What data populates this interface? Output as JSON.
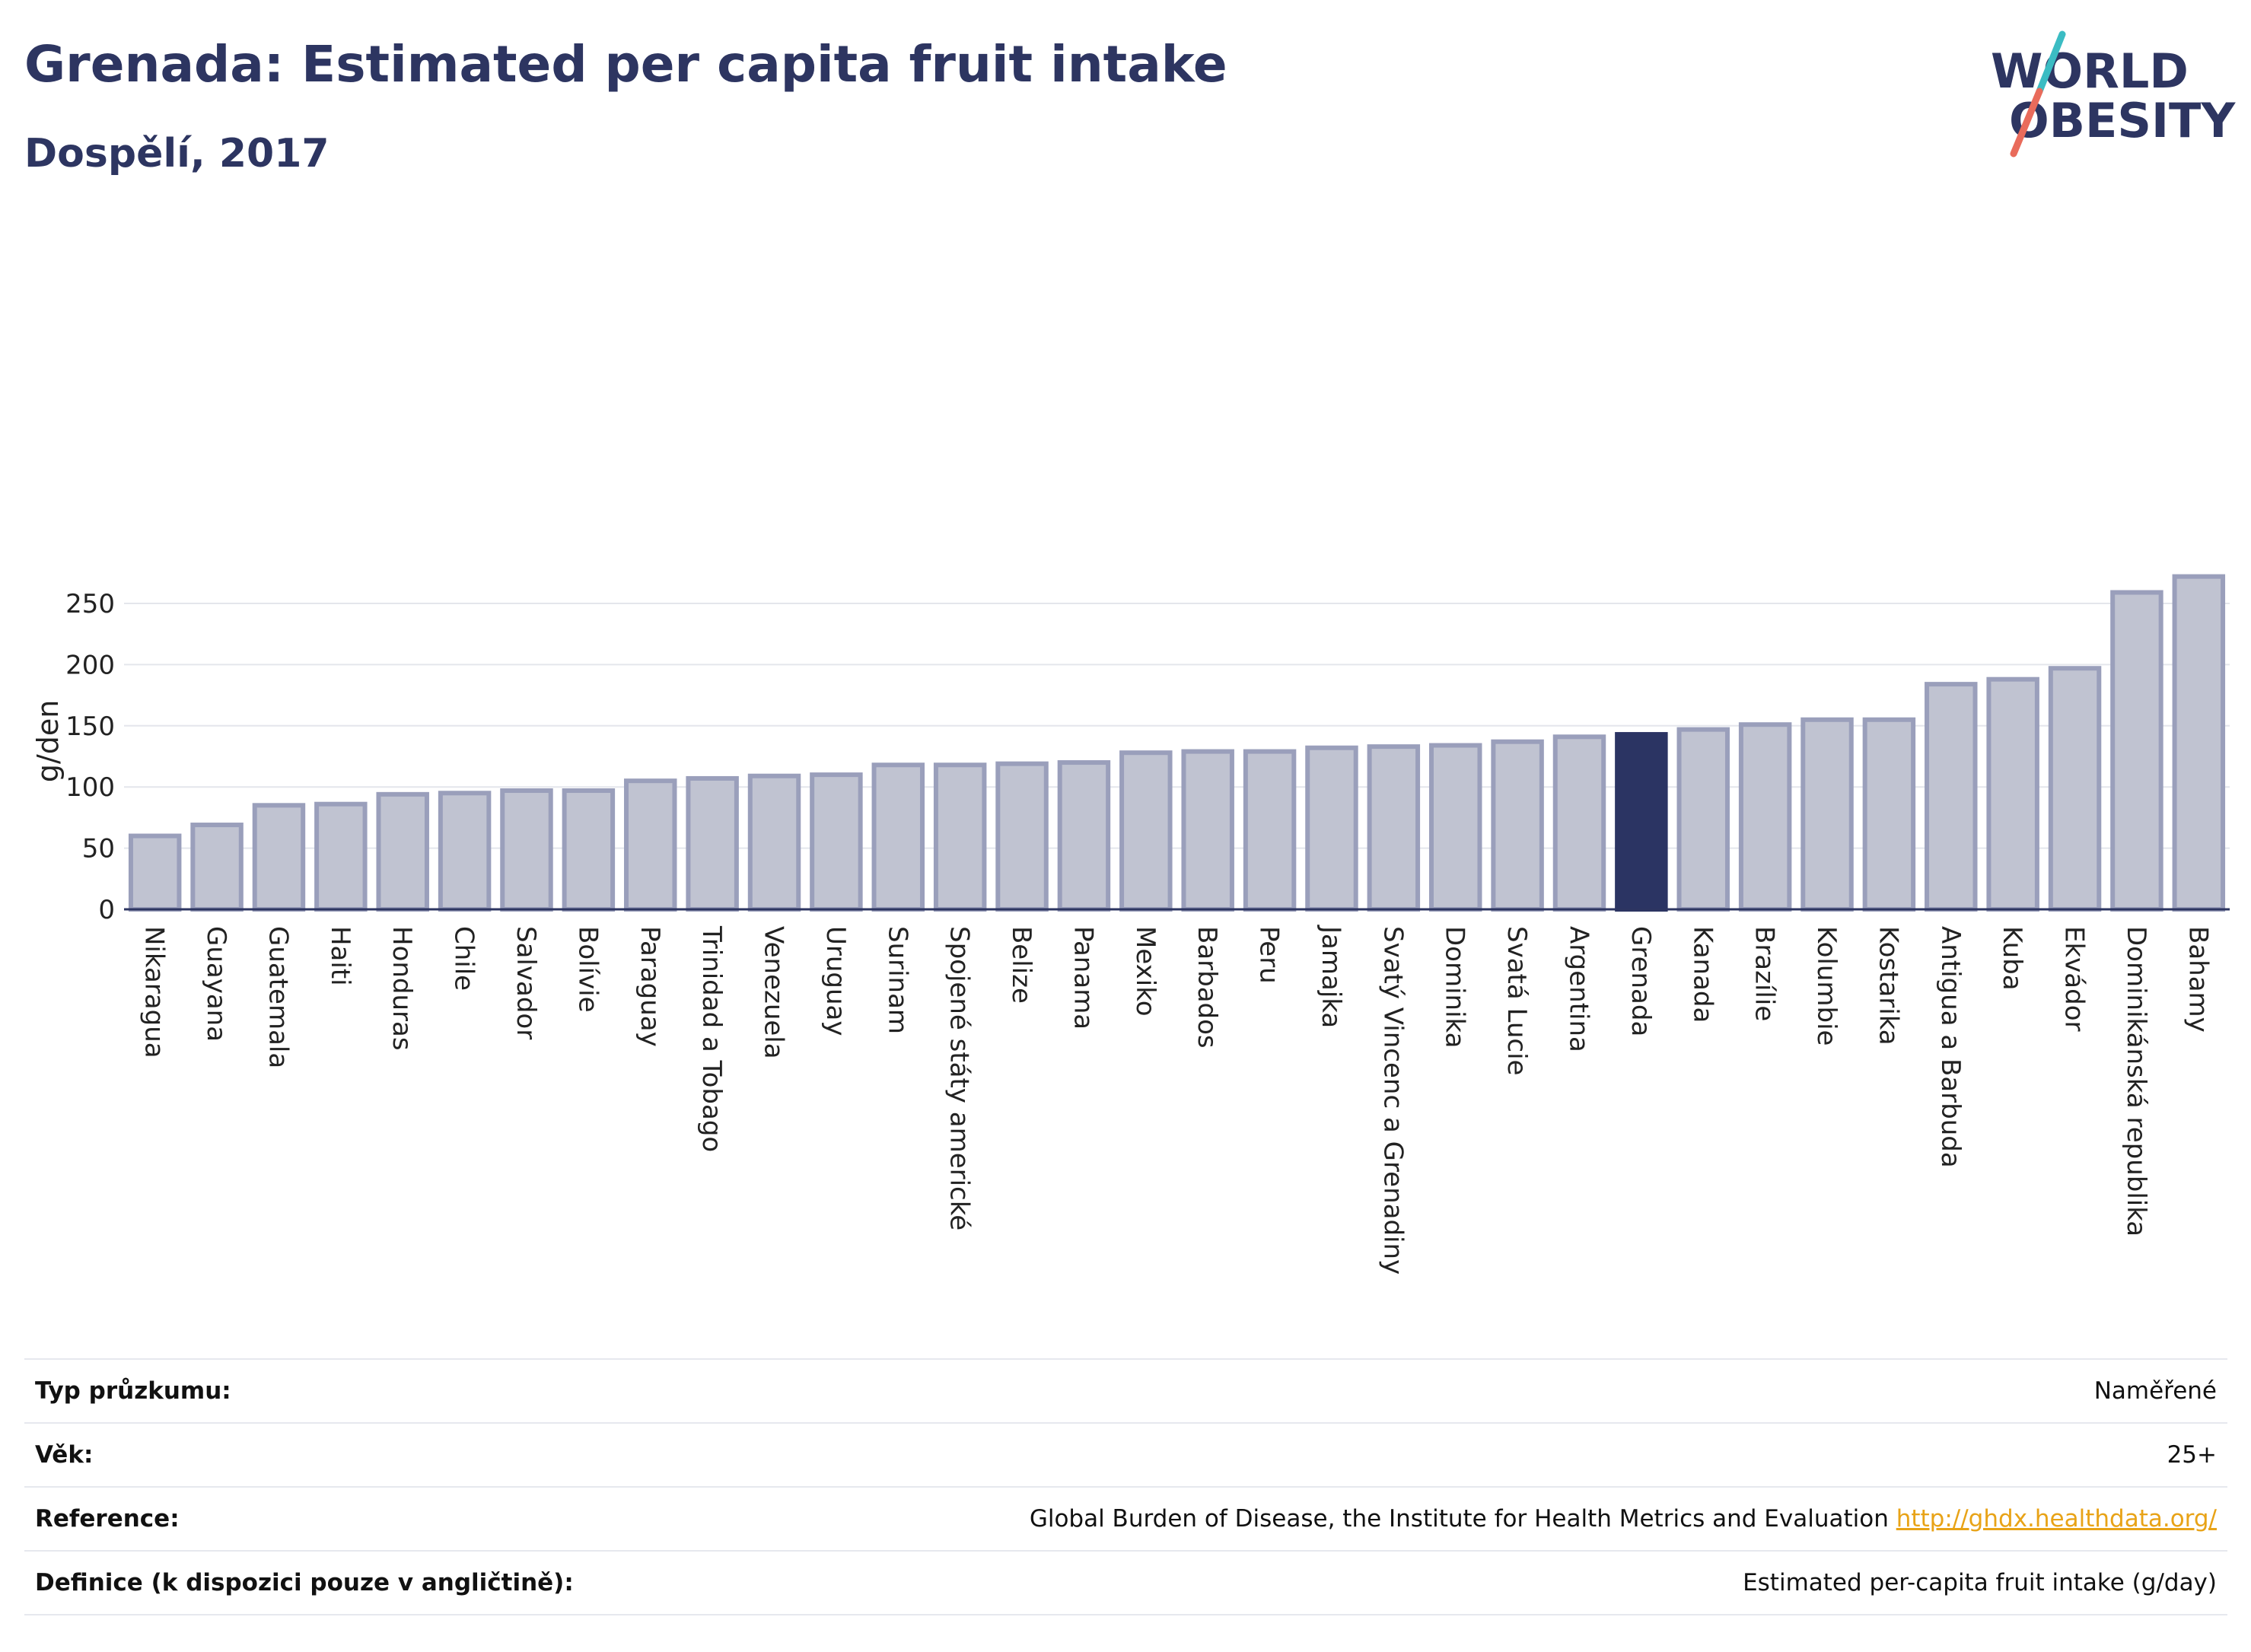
{
  "header": {
    "title": "Grenada: Estimated per capita fruit intake",
    "subtitle": "Dospělí, 2017"
  },
  "logo": {
    "line1": "WORLD",
    "line2": "OBESITY",
    "text_color": "#2d3561",
    "accent_teal": "#3bbcc3",
    "accent_coral": "#e96b5b"
  },
  "chart_data": {
    "type": "bar",
    "title": "Grenada: Estimated per capita fruit intake",
    "subtitle": "Dospělí, 2017",
    "ylabel": "g/den",
    "xlabel": "",
    "ylim": [
      0,
      275
    ],
    "yticks": [
      0,
      50,
      100,
      150,
      200,
      250
    ],
    "grid": true,
    "highlight": "Grenada",
    "colors": {
      "bar": "#c0c3d1",
      "bar_border": "#9a9fbb",
      "highlight": "#2b3463"
    },
    "categories": [
      "Nikaragua",
      "Guayana",
      "Guatemala",
      "Haiti",
      "Honduras",
      "Chile",
      "Salvador",
      "Bolívie",
      "Paraguay",
      "Trinidad a Tobago",
      "Venezuela",
      "Uruguay",
      "Surinam",
      "Spojené státy americké",
      "Belize",
      "Panama",
      "Mexiko",
      "Barbados",
      "Peru",
      "Jamajka",
      "Svatý Vincenc a Grenadiny",
      "Dominika",
      "Svatá Lucie",
      "Argentina",
      "Grenada",
      "Kanada",
      "Brazílie",
      "Kolumbie",
      "Kostarika",
      "Antigua a Barbuda",
      "Kuba",
      "Ekvádor",
      "Dominikánská republika",
      "Bahamy"
    ],
    "values": [
      60,
      69,
      85,
      86,
      94,
      95,
      97,
      97,
      105,
      107,
      109,
      110,
      118,
      118,
      119,
      120,
      128,
      129,
      129,
      132,
      133,
      134,
      137,
      141,
      143,
      147,
      151,
      155,
      155,
      184,
      188,
      197,
      259,
      272
    ]
  },
  "info": [
    {
      "key": "Typ průzkumu:",
      "value": "Naměřené"
    },
    {
      "key": "Věk:",
      "value": "25+"
    },
    {
      "key": "Reference:",
      "value": "Global Burden of Disease, the Institute for Health Metrics and Evaluation",
      "link": "http://ghdx.healthdata.org/"
    },
    {
      "key": "Definice (k dispozici pouze v angličtině):",
      "value": "Estimated per-capita fruit intake (g/day)"
    }
  ]
}
